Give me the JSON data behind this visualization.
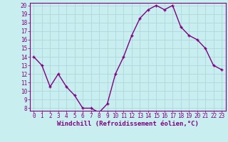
{
  "x": [
    0,
    1,
    2,
    3,
    4,
    5,
    6,
    7,
    8,
    9,
    10,
    11,
    12,
    13,
    14,
    15,
    16,
    17,
    18,
    19,
    20,
    21,
    22,
    23
  ],
  "y": [
    14,
    13,
    10.5,
    12,
    10.5,
    9.5,
    8,
    8,
    7.5,
    8.5,
    12,
    14,
    16.5,
    18.5,
    19.5,
    20,
    19.5,
    20,
    17.5,
    16.5,
    16,
    15,
    13,
    12.5
  ],
  "line_color": "#800080",
  "marker": "+",
  "marker_color": "#800080",
  "bg_color": "#c8eef0",
  "grid_color": "#b0d8dc",
  "xlabel": "Windchill (Refroidissement éolien,°C)",
  "ylim": [
    8,
    20
  ],
  "xlim": [
    -0.5,
    23.5
  ],
  "yticks": [
    8,
    9,
    10,
    11,
    12,
    13,
    14,
    15,
    16,
    17,
    18,
    19,
    20
  ],
  "xticks": [
    0,
    1,
    2,
    3,
    4,
    5,
    6,
    7,
    8,
    9,
    10,
    11,
    12,
    13,
    14,
    15,
    16,
    17,
    18,
    19,
    20,
    21,
    22,
    23
  ],
  "tick_color": "#800080",
  "label_color": "#800080",
  "axis_color": "#800080",
  "font_size_ticks": 5.5,
  "font_size_xlabel": 6.5,
  "line_width": 1.0,
  "marker_size": 3.5
}
